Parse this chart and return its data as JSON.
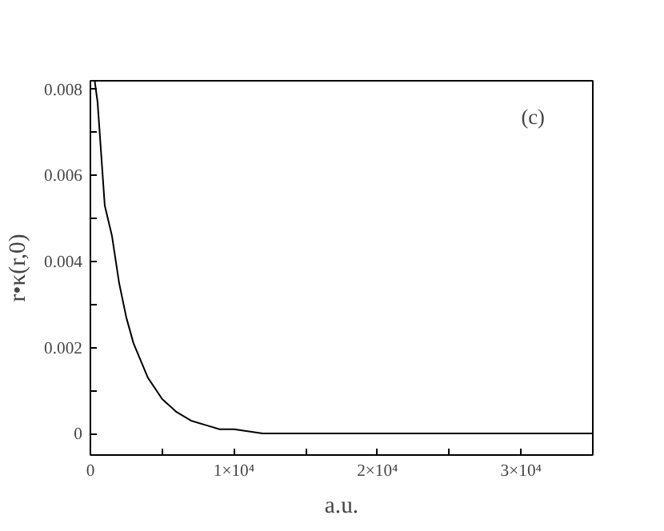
{
  "chart_data": {
    "type": "line",
    "xlabel": "a.u.",
    "ylabel": "r•κ(r,0)",
    "annotations": [
      "(c)"
    ],
    "x": [
      300,
      500,
      1000,
      1500,
      2000,
      2500,
      3000,
      3500,
      4000,
      5000,
      6000,
      7000,
      8000,
      9000,
      10000,
      12000,
      15000,
      20000,
      25000,
      30000,
      35000
    ],
    "series": [
      {
        "color": "#000000",
        "values": [
          0.0082,
          0.0077,
          0.0053,
          0.0046,
          0.0035,
          0.0027,
          0.0021,
          0.0017,
          0.0013,
          0.0008,
          0.0005,
          0.0003,
          0.0002,
          0.0001,
          0.0001,
          0,
          0,
          0,
          0,
          0,
          0
        ]
      }
    ],
    "xlim": [
      0,
      35000
    ],
    "ylim": [
      -0.0005,
      0.0082
    ],
    "xticks": [
      0,
      {
        "value": 5000,
        "label": null
      },
      {
        "value": 10000,
        "label": "1×10⁴"
      },
      {
        "value": 15000,
        "label": null
      },
      {
        "value": 20000,
        "label": "2×10⁴"
      },
      {
        "value": 25000,
        "label": null
      },
      {
        "value": 30000,
        "label": "3×10⁴"
      }
    ],
    "yticks": [
      0,
      {
        "value": 0.001,
        "label": null
      },
      0.002,
      {
        "value": 0.003,
        "label": null
      },
      0.004,
      {
        "value": 0.005,
        "label": null
      },
      0.006,
      {
        "value": 0.007,
        "label": null
      },
      0.008
    ],
    "grid": false,
    "marker": "none",
    "line_style": "solid"
  }
}
